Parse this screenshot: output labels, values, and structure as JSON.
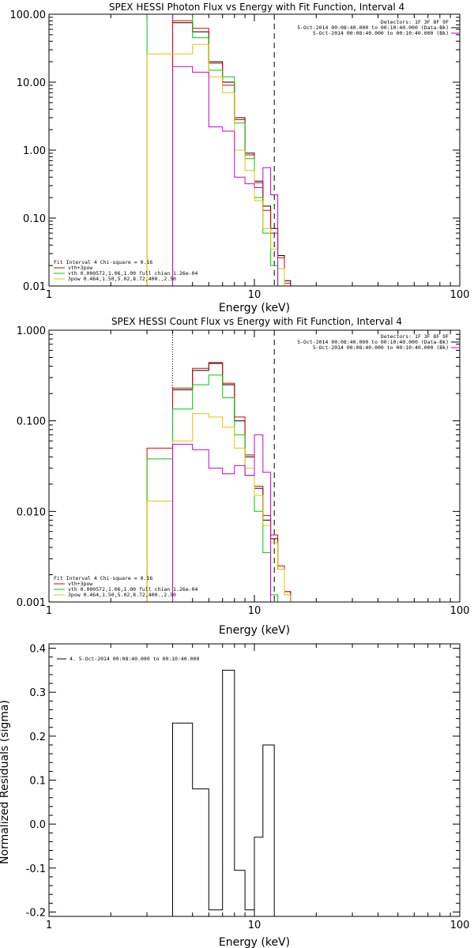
{
  "chart_data": [
    {
      "type": "line",
      "step": true,
      "title": "SPEX HESSI Photon Flux vs Energy with Fit Function, Interval 4",
      "xlabel": "Energy (keV)",
      "ylabel": "",
      "xscale": "log",
      "yscale": "log",
      "xlim": [
        1,
        100
      ],
      "ylim": [
        0.01,
        100
      ],
      "x_ticks": [
        "1",
        "10",
        "100"
      ],
      "y_ticks": [
        "0.01",
        "0.10",
        "1.00",
        "10.00",
        "100.00"
      ],
      "vlines": [
        {
          "x": 4.0,
          "style": "solid",
          "color": "#cc00cc"
        },
        {
          "x": 12.5,
          "style": "dashed",
          "color": "#000000"
        }
      ],
      "legend_top": [
        "Detectors: 1F 3F 8F 9F",
        "5-Oct-2014 00:08:40.000 to 00:10:40.000 (Data-Bk)",
        "5-Oct-2014 00:08:40.000 to 00:10:40.000 (Bk)"
      ],
      "legend_top_colors": [
        "",
        "#000000",
        "#cc00cc"
      ],
      "legend_bottom": [
        "Fit Interval 4   Chi-square = 0.16",
        "vth+3pow",
        "vth 0.000572,1.06,1.00   full chian 1.26e-04",
        "3pow 0.464,1.50,5.02,8.72,400.,2.50"
      ],
      "legend_bottom_colors": [
        "",
        "#dd0000",
        "#00cc00",
        "#e6c000"
      ],
      "edges": [
        3,
        4,
        5,
        6,
        7,
        8,
        9,
        10,
        11,
        12,
        13,
        14,
        15
      ],
      "series": [
        {
          "color": "#000000",
          "values": [
            null,
            75,
            55,
            20,
            10,
            3,
            0.9,
            0.35,
            0.15,
            0.07,
            0.028,
            0.012
          ]
        },
        {
          "color": "#dd0000",
          "values": [
            null,
            80,
            62,
            19,
            9,
            2.8,
            0.85,
            0.33,
            0.13,
            0.06,
            0.026,
            0.011
          ]
        },
        {
          "color": "#00cc00",
          "values": [
            100,
            100,
            45,
            15,
            12,
            2.5,
            0.75,
            0.2,
            0.06,
            0.02,
            0.01,
            null
          ]
        },
        {
          "color": "#e6c000",
          "values": [
            26,
            26,
            36,
            12,
            7,
            1,
            0.5,
            0.18,
            0.07,
            0.035,
            0.018,
            0.01
          ]
        },
        {
          "color": "#cc00cc",
          "values": [
            null,
            17,
            14,
            2.2,
            1.9,
            0.4,
            0.32,
            0.28,
            0.55,
            0.22,
            null,
            null
          ]
        }
      ]
    },
    {
      "type": "line",
      "step": true,
      "title": "SPEX HESSI Count Flux vs Energy with Fit Function, Interval 4",
      "xlabel": "Energy (keV)",
      "ylabel": "",
      "xscale": "log",
      "yscale": "log",
      "xlim": [
        1,
        100
      ],
      "ylim": [
        0.001,
        1
      ],
      "x_ticks": [
        "1",
        "10",
        "100"
      ],
      "y_ticks": [
        "0.001",
        "0.010",
        "0.100",
        "1.000"
      ],
      "vlines": [
        {
          "x": 4.0,
          "style": "dotted",
          "color": "#000000"
        },
        {
          "x": 12.5,
          "style": "dashed",
          "color": "#000000"
        }
      ],
      "legend_top": [
        "Detectors: 1F 3F 8F 9F",
        "5-Oct-2014 00:08:40.000 to 00:10:40.000 (Data-Bk)",
        "5-Oct-2014 00:08:40.000 to 00:10:40.000 (Bk)"
      ],
      "legend_top_colors": [
        "",
        "#000000",
        "#cc00cc"
      ],
      "legend_bottom": [
        "Fit Interval 4   Chi-square = 0.16",
        "vth+3pow",
        "vth 0.000572,1.06,1.00   full chian 1.26e-04",
        "3pow 0.464,1.50,5.02,8.72,400.,2.50"
      ],
      "legend_bottom_colors": [
        "",
        "#dd0000",
        "#00cc00",
        "#e6c000"
      ],
      "edges": [
        3,
        4,
        5,
        6,
        7,
        8,
        9,
        10,
        11,
        12,
        13,
        14,
        15
      ],
      "series": [
        {
          "color": "#000000",
          "values": [
            null,
            0.22,
            0.36,
            0.43,
            0.25,
            0.1,
            0.04,
            0.018,
            0.008,
            0.005,
            0.0023,
            0.0013
          ]
        },
        {
          "color": "#dd0000",
          "values": [
            0.05,
            0.23,
            0.38,
            0.44,
            0.26,
            0.11,
            0.042,
            0.019,
            0.009,
            0.0055,
            0.0025,
            0.0013
          ]
        },
        {
          "color": "#00cc00",
          "values": [
            0.038,
            0.135,
            0.25,
            0.32,
            0.18,
            0.07,
            0.025,
            0.01,
            0.0035,
            0.0012,
            null,
            null
          ]
        },
        {
          "color": "#e6c000",
          "values": [
            0.013,
            0.06,
            0.12,
            0.11,
            0.085,
            0.05,
            0.03,
            0.015,
            0.007,
            0.0045,
            0.0023,
            0.0012
          ]
        },
        {
          "color": "#cc00cc",
          "values": [
            null,
            0.055,
            0.048,
            0.03,
            0.026,
            0.032,
            0.025,
            0.07,
            0.027,
            null,
            null,
            null
          ]
        }
      ]
    },
    {
      "type": "line",
      "step": true,
      "title": "",
      "xlabel": "Energy (keV)",
      "ylabel": "Normalized Residuals (sigma)",
      "xscale": "log",
      "yscale": "linear",
      "xlim": [
        1,
        100
      ],
      "ylim": [
        -0.21,
        0.41
      ],
      "x_ticks": [
        "1",
        "10",
        "100"
      ],
      "y_ticks": [
        "-0.2",
        "-0.1",
        "0.0",
        "0.1",
        "0.2",
        "0.3",
        "0.4"
      ],
      "legend_top": [
        "4. 5-Oct-2014 00:08:40.000 to 00:10:40.000"
      ],
      "edges": [
        4,
        5,
        6,
        7,
        8,
        9,
        10,
        11,
        12.5
      ],
      "series": [
        {
          "color": "#000000",
          "values": [
            0.23,
            0.08,
            -0.195,
            0.35,
            -0.105,
            -0.195,
            -0.03,
            0.18
          ]
        }
      ]
    }
  ]
}
